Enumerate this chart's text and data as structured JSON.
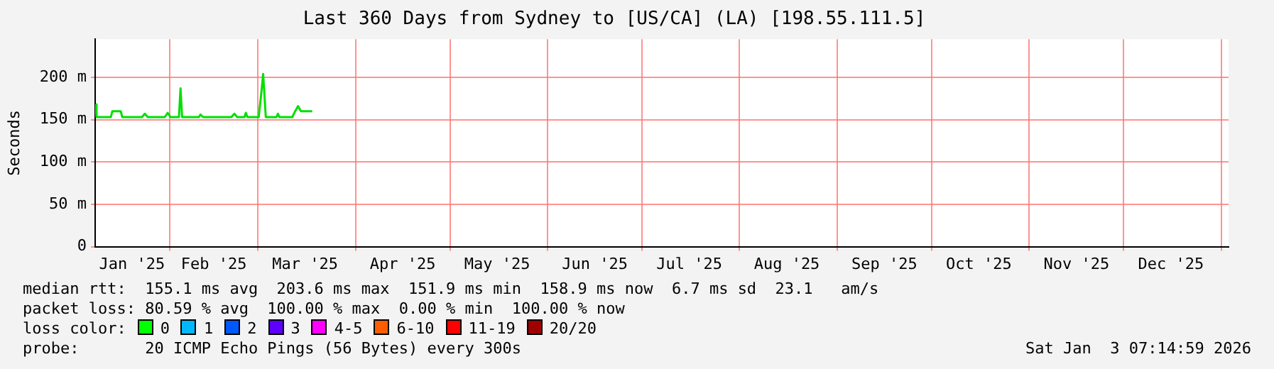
{
  "chart_data": {
    "type": "line",
    "title": "Last 360 Days from Sydney to [US/CA] (LA) [198.55.111.5]",
    "ylabel": "Seconds",
    "x": [
      "2025-01-08T07:15",
      "2025-01-08T18:00",
      "2025-01-13T07:00",
      "2025-01-13T18:00",
      "2025-01-16T10:00",
      "2025-01-16T22:00",
      "2025-01-23T04:00",
      "2025-01-24T02:00",
      "2025-01-25T00:00",
      "2025-01-30T10:00",
      "2025-01-31T08:00",
      "2025-02-01T06:00",
      "2025-02-03T22:00",
      "2025-02-04T10:00",
      "2025-02-04T22:00",
      "2025-02-10T06:00",
      "2025-02-10T18:00",
      "2025-02-11T14:00",
      "2025-02-20T14:00",
      "2025-02-21T12:00",
      "2025-02-22T10:00",
      "2025-02-24T18:00",
      "2025-02-25T04:00",
      "2025-02-25T16:00",
      "2025-03-01T06:00",
      "2025-03-02T04:00",
      "2025-03-02T16:00",
      "2025-03-03T12:00",
      "2025-03-06T22:00",
      "2025-03-07T08:00",
      "2025-03-07T20:00",
      "2025-03-11T22:00",
      "2025-03-12T20:00",
      "2025-03-13T18:00",
      "2025-03-14T16:00",
      "2025-03-18T06:00"
    ],
    "series": [
      {
        "color": "#00e000",
        "values": [
          168,
          153,
          153,
          160,
          160,
          153,
          153,
          157,
          153,
          153,
          158,
          153,
          153,
          187,
          153,
          153,
          156,
          153,
          153,
          157,
          153,
          153,
          158,
          153,
          153,
          185,
          204,
          153,
          153,
          157,
          153,
          153,
          160,
          166,
          160,
          160
        ]
      }
    ],
    "xlim": [
      "2025-01-08T07:15",
      "2026-01-03T07:15"
    ],
    "xticks": [
      {
        "value": "2025-01-20",
        "label": "Jan '25"
      },
      {
        "value": "2025-02-01",
        "label": null
      },
      {
        "value": "2025-02-15",
        "label": "Feb '25"
      },
      {
        "value": "2025-03-01",
        "label": null
      },
      {
        "value": "2025-03-16",
        "label": "Mar '25"
      },
      {
        "value": "2025-04-01",
        "label": null
      },
      {
        "value": "2025-04-16",
        "label": "Apr '25"
      },
      {
        "value": "2025-05-01",
        "label": null
      },
      {
        "value": "2025-05-16",
        "label": "May '25"
      },
      {
        "value": "2025-06-01",
        "label": null
      },
      {
        "value": "2025-06-16",
        "label": "Jun '25"
      },
      {
        "value": "2025-07-01",
        "label": null
      },
      {
        "value": "2025-07-16",
        "label": "Jul '25"
      },
      {
        "value": "2025-08-01",
        "label": null
      },
      {
        "value": "2025-08-16",
        "label": "Aug '25"
      },
      {
        "value": "2025-09-01",
        "label": null
      },
      {
        "value": "2025-09-16",
        "label": "Sep '25"
      },
      {
        "value": "2025-10-01",
        "label": null
      },
      {
        "value": "2025-10-16",
        "label": "Oct '25"
      },
      {
        "value": "2025-11-01",
        "label": null
      },
      {
        "value": "2025-11-16",
        "label": "Nov '25"
      },
      {
        "value": "2025-12-01",
        "label": null
      },
      {
        "value": "2025-12-16",
        "label": "Dec '25"
      },
      {
        "value": "2026-01-01",
        "label": null
      }
    ],
    "ylim": [
      0,
      245
    ],
    "yticks": [
      0,
      {
        "value": 50,
        "label": "50 m"
      },
      {
        "value": 100,
        "label": "100 m"
      },
      {
        "value": 150,
        "label": "150 m"
      },
      {
        "value": 200,
        "label": "200 m"
      }
    ],
    "grid": true,
    "legend": false,
    "marker": "none",
    "line_style": "solid",
    "annotations": [
      "median rtt:  155.1 ms avg  203.6 ms max  151.9 ms min  158.9 ms now  6.7 ms sd  23.1   am/s",
      "packet loss: 80.59 % avg  100.00 % max  0.00 % min  100.00 % now",
      "loss color:",
      "0",
      "1",
      "2",
      "3",
      "4-5",
      "6-10",
      "11-19",
      "20/20",
      "probe:       20 ICMP Echo Pings (56 Bytes) every 300s",
      "Sat Jan  3 07:14:59 2026"
    ]
  }
}
